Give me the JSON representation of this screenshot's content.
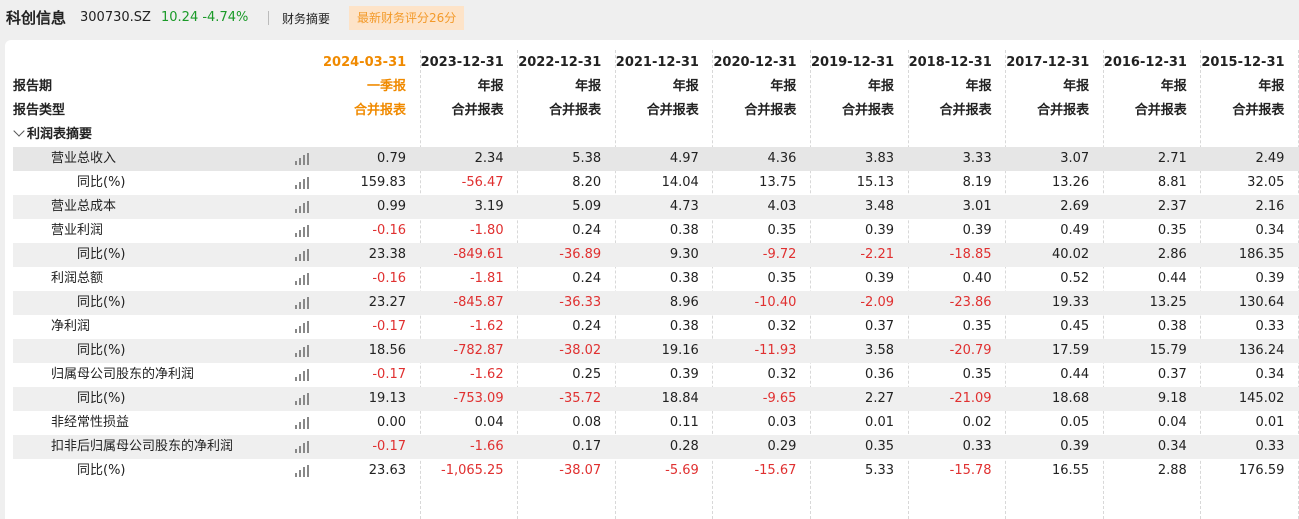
{
  "header": {
    "stock_name": "科创信息",
    "stock_code": "300730.SZ",
    "price_change": "10.24 -4.74%",
    "tab_label": "财务摘要",
    "score_badge": "最新财务评分26分"
  },
  "table": {
    "columns": [
      {
        "date": "2024-03-31",
        "report_period": "一季报",
        "report_type": "合并报表",
        "latest": true
      },
      {
        "date": "2023-12-31",
        "report_period": "年报",
        "report_type": "合并报表"
      },
      {
        "date": "2022-12-31",
        "report_period": "年报",
        "report_type": "合并报表"
      },
      {
        "date": "2021-12-31",
        "report_period": "年报",
        "report_type": "合并报表"
      },
      {
        "date": "2020-12-31",
        "report_period": "年报",
        "report_type": "合并报表"
      },
      {
        "date": "2019-12-31",
        "report_period": "年报",
        "report_type": "合并报表"
      },
      {
        "date": "2018-12-31",
        "report_period": "年报",
        "report_type": "合并报表"
      },
      {
        "date": "2017-12-31",
        "report_period": "年报",
        "report_type": "合并报表"
      },
      {
        "date": "2016-12-31",
        "report_period": "年报",
        "report_type": "合并报表"
      },
      {
        "date": "2015-12-31",
        "report_period": "年报",
        "report_type": "合并报表"
      }
    ],
    "label_report_period": "报告期",
    "label_report_type": "报告类型",
    "section_title": "利润表摘要",
    "rows": [
      {
        "label": "营业总收入",
        "indent": 1,
        "values": [
          "0.79",
          "2.34",
          "5.38",
          "4.97",
          "4.36",
          "3.83",
          "3.33",
          "3.07",
          "2.71",
          "2.49"
        ]
      },
      {
        "label": "同比(%)",
        "indent": 2,
        "values": [
          "159.83",
          "-56.47",
          "8.20",
          "14.04",
          "13.75",
          "15.13",
          "8.19",
          "13.26",
          "8.81",
          "32.05"
        ]
      },
      {
        "label": "营业总成本",
        "indent": 1,
        "values": [
          "0.99",
          "3.19",
          "5.09",
          "4.73",
          "4.03",
          "3.48",
          "3.01",
          "2.69",
          "2.37",
          "2.16"
        ]
      },
      {
        "label": "营业利润",
        "indent": 1,
        "values": [
          "-0.16",
          "-1.80",
          "0.24",
          "0.38",
          "0.35",
          "0.39",
          "0.39",
          "0.49",
          "0.35",
          "0.34"
        ]
      },
      {
        "label": "同比(%)",
        "indent": 2,
        "values": [
          "23.38",
          "-849.61",
          "-36.89",
          "9.30",
          "-9.72",
          "-2.21",
          "-18.85",
          "40.02",
          "2.86",
          "186.35"
        ]
      },
      {
        "label": "利润总额",
        "indent": 1,
        "values": [
          "-0.16",
          "-1.81",
          "0.24",
          "0.38",
          "0.35",
          "0.39",
          "0.40",
          "0.52",
          "0.44",
          "0.39"
        ]
      },
      {
        "label": "同比(%)",
        "indent": 2,
        "values": [
          "23.27",
          "-845.87",
          "-36.33",
          "8.96",
          "-10.40",
          "-2.09",
          "-23.86",
          "19.33",
          "13.25",
          "130.64"
        ]
      },
      {
        "label": "净利润",
        "indent": 1,
        "values": [
          "-0.17",
          "-1.62",
          "0.24",
          "0.38",
          "0.32",
          "0.37",
          "0.35",
          "0.45",
          "0.38",
          "0.33"
        ]
      },
      {
        "label": "同比(%)",
        "indent": 2,
        "values": [
          "18.56",
          "-782.87",
          "-38.02",
          "19.16",
          "-11.93",
          "3.58",
          "-20.79",
          "17.59",
          "15.79",
          "136.24"
        ]
      },
      {
        "label": "归属母公司股东的净利润",
        "indent": 1,
        "values": [
          "-0.17",
          "-1.62",
          "0.25",
          "0.39",
          "0.32",
          "0.36",
          "0.35",
          "0.44",
          "0.37",
          "0.34"
        ]
      },
      {
        "label": "同比(%)",
        "indent": 2,
        "values": [
          "19.13",
          "-753.09",
          "-35.72",
          "18.84",
          "-9.65",
          "2.27",
          "-21.09",
          "18.68",
          "9.18",
          "145.02"
        ]
      },
      {
        "label": "非经常性损益",
        "indent": 1,
        "values": [
          "0.00",
          "0.04",
          "0.08",
          "0.11",
          "0.03",
          "0.01",
          "0.02",
          "0.05",
          "0.04",
          "0.01"
        ]
      },
      {
        "label": "扣非后归属母公司股东的净利润",
        "indent": 1,
        "values": [
          "-0.17",
          "-1.66",
          "0.17",
          "0.28",
          "0.29",
          "0.35",
          "0.33",
          "0.39",
          "0.34",
          "0.33"
        ]
      },
      {
        "label": "同比(%)",
        "indent": 2,
        "values": [
          "23.63",
          "-1,065.25",
          "-38.07",
          "-5.69",
          "-15.67",
          "5.33",
          "-15.78",
          "16.55",
          "2.88",
          "176.59"
        ]
      }
    ],
    "chart_icon": "bar-chart-icon",
    "colors": {
      "negative": "#e03030",
      "latest": "#f08a00",
      "positive_change": "#1a9a28"
    }
  }
}
